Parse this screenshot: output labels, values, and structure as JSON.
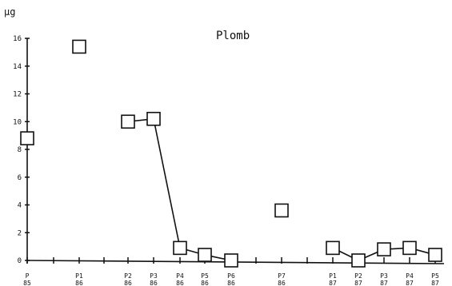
{
  "chart_data": {
    "type": "scatter",
    "title": "Plomb",
    "unit": "µg",
    "xlabel": "",
    "ylabel": "",
    "ylim": [
      0,
      16
    ],
    "yticks": [
      0,
      2,
      4,
      6,
      8,
      10,
      12,
      14,
      16
    ],
    "grid": false,
    "legend": "none",
    "colors": {
      "axis": "#111111",
      "marker_fill": "#ffffff",
      "marker_stroke": "#111111",
      "line": "#111111"
    },
    "categories": [
      {
        "top": "P",
        "bottom": "85"
      },
      {
        "top": "P1",
        "bottom": "86"
      },
      {
        "top": "P2",
        "bottom": "86"
      },
      {
        "top": "P3",
        "bottom": "86"
      },
      {
        "top": "P4",
        "bottom": "86"
      },
      {
        "top": "P5",
        "bottom": "86"
      },
      {
        "top": "P6",
        "bottom": "86"
      },
      {
        "top": "P7",
        "bottom": "86"
      },
      {
        "top": "P1",
        "bottom": "87"
      },
      {
        "top": "P2",
        "bottom": "87"
      },
      {
        "top": "P3",
        "bottom": "87"
      },
      {
        "top": "P4",
        "bottom": "87"
      },
      {
        "top": "P5",
        "bottom": "87"
      }
    ],
    "points": [
      {
        "category": 0,
        "value": 8.8
      },
      {
        "category": 1,
        "value": 15.4
      },
      {
        "category": 2,
        "value": 10.0
      },
      {
        "category": 3,
        "value": 10.2
      },
      {
        "category": 4,
        "value": 0.9
      },
      {
        "category": 5,
        "value": 0.4
      },
      {
        "category": 6,
        "value": 0.0
      },
      {
        "category": 7,
        "value": 3.6
      },
      {
        "category": 8,
        "value": 0.9
      },
      {
        "category": 9,
        "value": 0.0
      },
      {
        "category": 10,
        "value": 0.8
      },
      {
        "category": 11,
        "value": 0.9
      },
      {
        "category": 12,
        "value": 0.4
      }
    ],
    "line_groups": [
      [
        2,
        3,
        4,
        5,
        6
      ],
      [
        8,
        9,
        10,
        11,
        12
      ]
    ]
  }
}
